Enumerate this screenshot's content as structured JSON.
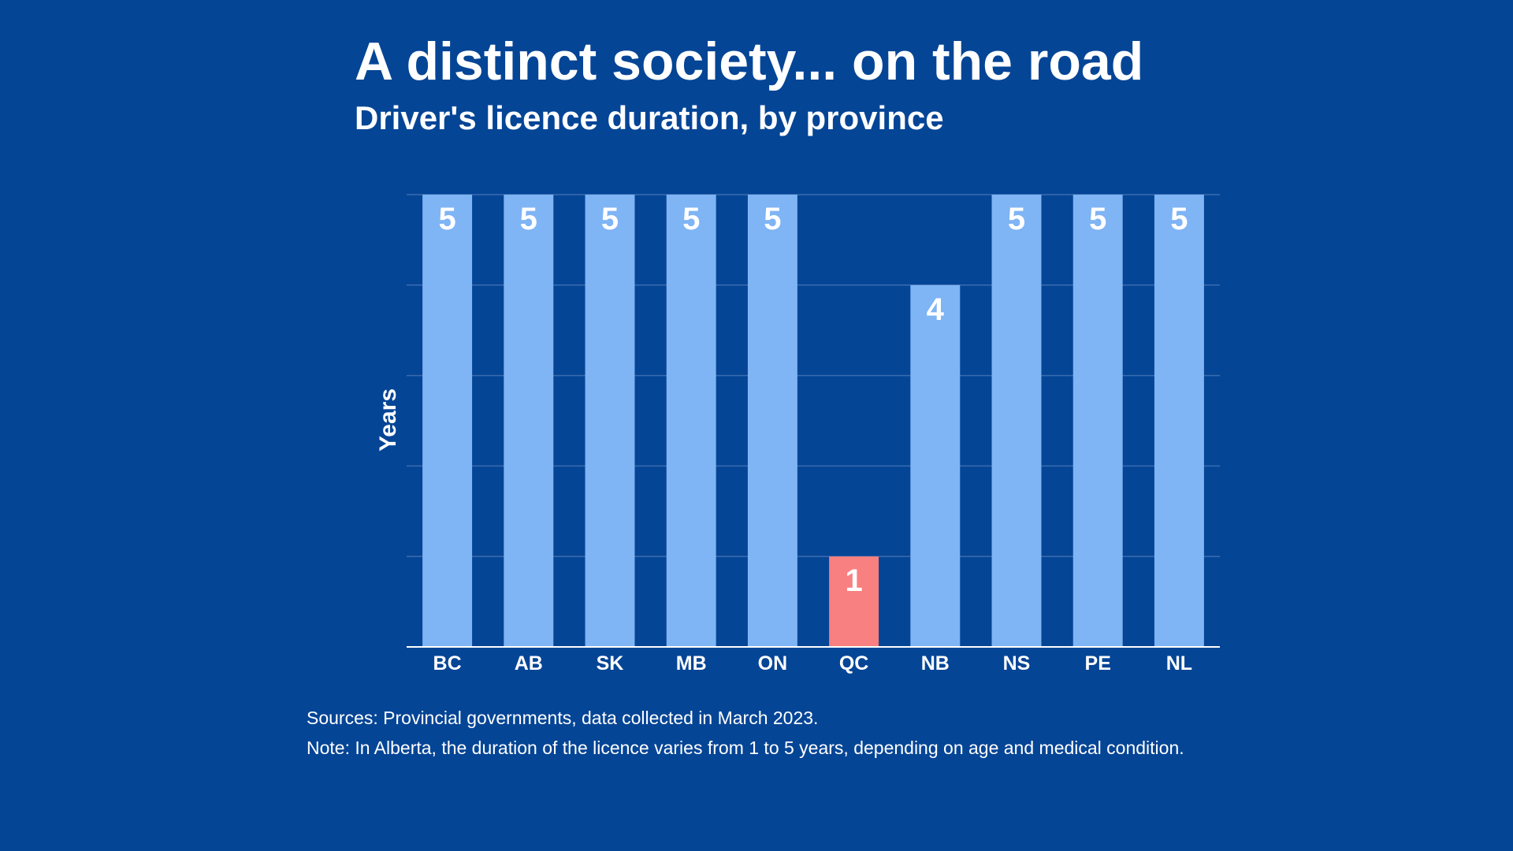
{
  "chart_data": {
    "type": "bar",
    "title": "A distinct society... on the road",
    "subtitle": "Driver's licence duration, by province",
    "ylabel": "Years",
    "xlabel": "",
    "ylim": [
      0,
      5
    ],
    "grid": true,
    "categories": [
      "BC",
      "AB",
      "SK",
      "MB",
      "ON",
      "QC",
      "NB",
      "NS",
      "PE",
      "NL"
    ],
    "values": [
      5,
      5,
      5,
      5,
      5,
      1,
      4,
      5,
      5,
      5
    ],
    "highlight_category": "QC",
    "colors": {
      "background": "#054596",
      "bar": "#7fb4f5",
      "highlight": "#f88080",
      "grid": "#3a6cae",
      "axis": "#ffffff",
      "text": "#ffffff"
    }
  },
  "footer": {
    "sources": "Sources: Provincial governments, data collected in March 2023.",
    "note": "Note: In Alberta, the duration of the licence varies from 1 to 5 years, depending on age and medical condition."
  }
}
